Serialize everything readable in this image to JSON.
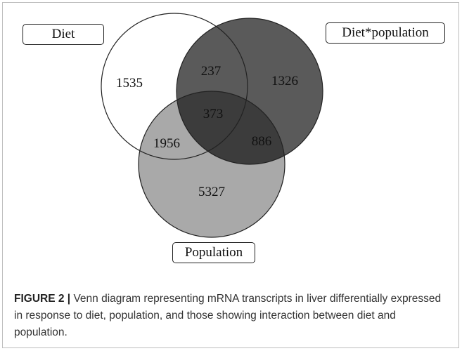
{
  "figure": {
    "label": "FIGURE 2 |",
    "caption": " Venn diagram representing mRNA transcripts in liver differentially expressed in response to diet, population, and those showing interaction between diet and population."
  },
  "sets": {
    "diet": "Diet",
    "interaction": "Diet*population",
    "population": "Population"
  },
  "regions": {
    "diet_only": "1535",
    "diet_interaction": "237",
    "interaction_only": "1326",
    "all_three": "373",
    "diet_population": "1956",
    "interaction_population": "886",
    "population_only": "5327"
  },
  "colors": {
    "interaction_fill": "#5a5a5a",
    "population_fill": "#a9a9a9",
    "diet_fill": "#ffffff"
  }
}
